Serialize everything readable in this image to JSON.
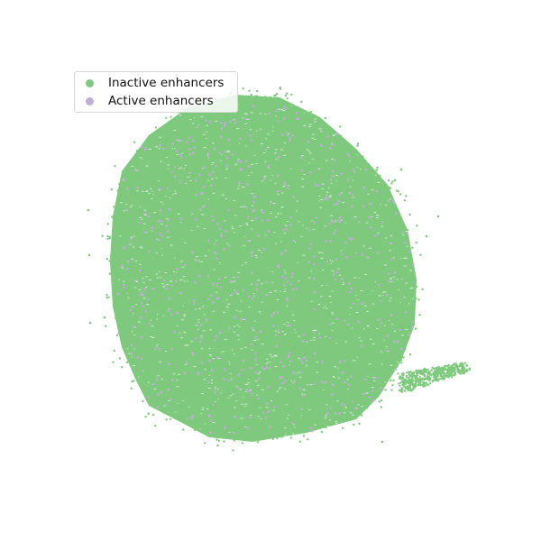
{
  "chart_data": {
    "type": "scatter",
    "title": "",
    "xlabel": "",
    "ylabel": "",
    "axes_visible": false,
    "grid": false,
    "legend_placement": "upper-left",
    "series": [
      {
        "name": "Inactive enhancers",
        "color": "#7fc97f",
        "relative_share": 0.93
      },
      {
        "name": "Active enhancers",
        "color": "#beaed4",
        "relative_share": 0.07
      }
    ]
  }
}
